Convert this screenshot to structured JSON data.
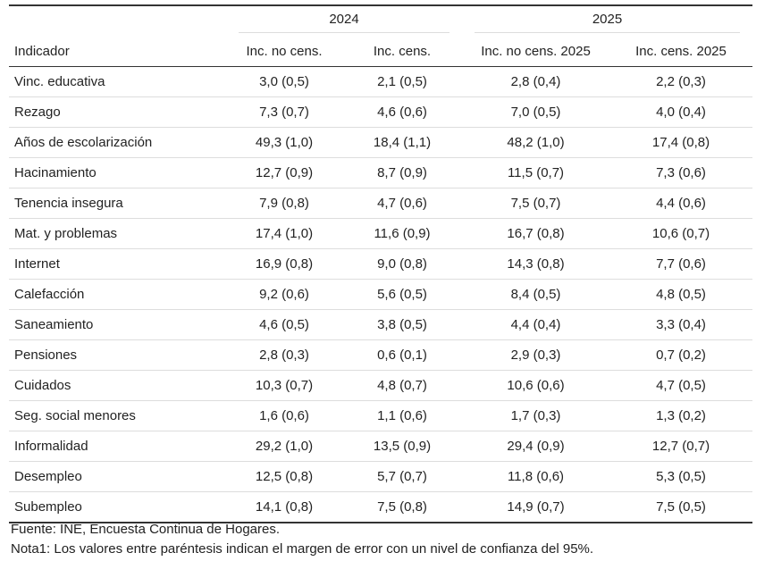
{
  "table": {
    "group_headers": {
      "y2024": "2024",
      "y2025": "2025"
    },
    "columns": [
      "Indicador",
      "Inc. no cens.",
      "Inc. cens.",
      "Inc. no cens. 2025",
      "Inc. cens. 2025"
    ],
    "rows": [
      [
        "Vinc. educativa",
        "3,0 (0,5)",
        "2,1 (0,5)",
        "2,8 (0,4)",
        "2,2 (0,3)"
      ],
      [
        "Rezago",
        "7,3 (0,7)",
        "4,6 (0,6)",
        "7,0 (0,5)",
        "4,0 (0,4)"
      ],
      [
        "Años de escolarización",
        "49,3 (1,0)",
        "18,4 (1,1)",
        "48,2 (1,0)",
        "17,4 (0,8)"
      ],
      [
        "Hacinamiento",
        "12,7 (0,9)",
        "8,7 (0,9)",
        "11,5 (0,7)",
        "7,3 (0,6)"
      ],
      [
        "Tenencia insegura",
        "7,9 (0,8)",
        "4,7 (0,6)",
        "7,5 (0,7)",
        "4,4 (0,6)"
      ],
      [
        "Mat. y problemas",
        "17,4 (1,0)",
        "11,6 (0,9)",
        "16,7 (0,8)",
        "10,6 (0,7)"
      ],
      [
        "Internet",
        "16,9 (0,8)",
        "9,0 (0,8)",
        "14,3 (0,8)",
        "7,7 (0,6)"
      ],
      [
        "Calefacción",
        "9,2 (0,6)",
        "5,6 (0,5)",
        "8,4 (0,5)",
        "4,8 (0,5)"
      ],
      [
        "Saneamiento",
        "4,6 (0,5)",
        "3,8 (0,5)",
        "4,4 (0,4)",
        "3,3 (0,4)"
      ],
      [
        "Pensiones",
        "2,8 (0,3)",
        "0,6 (0,1)",
        "2,9 (0,3)",
        "0,7 (0,2)"
      ],
      [
        "Cuidados",
        "10,3 (0,7)",
        "4,8 (0,7)",
        "10,6 (0,6)",
        "4,7 (0,5)"
      ],
      [
        "Seg. social menores",
        "1,6 (0,6)",
        "1,1 (0,6)",
        "1,7 (0,3)",
        "1,3 (0,2)"
      ],
      [
        "Informalidad",
        "29,2 (1,0)",
        "13,5 (0,9)",
        "29,4 (0,9)",
        "12,7 (0,7)"
      ],
      [
        "Desempleo",
        "12,5 (0,8)",
        "5,7 (0,7)",
        "11,8 (0,6)",
        "5,3 (0,5)"
      ],
      [
        "Subempleo",
        "14,1 (0,8)",
        "7,5 (0,8)",
        "14,9 (0,7)",
        "7,5 (0,5)"
      ]
    ]
  },
  "notes": {
    "source": "Fuente: INE, Encuesta Continua de Hogares.",
    "note1": "Nota1: Los valores entre paréntesis indican el margen de error con un nivel de confianza del 95%."
  }
}
